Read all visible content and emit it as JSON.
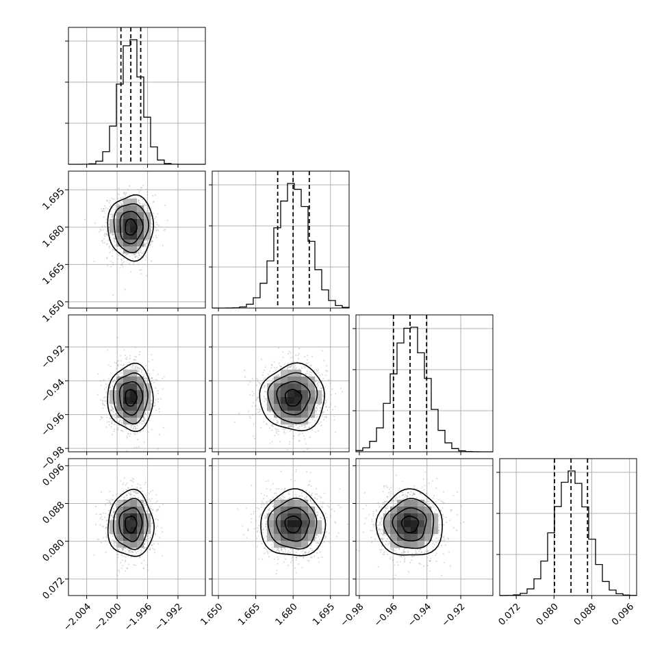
{
  "chart_data": {
    "type": "corner",
    "grid": true,
    "parameters": [
      {
        "range": [
          -2.0064,
          -1.9884
        ],
        "ticks": [
          -2.004,
          -2.0,
          -1.996,
          -1.992
        ],
        "tick_labels": [
          "−2.004",
          "−2.000",
          "−1.996",
          "−1.992"
        ],
        "mean": -1.9982,
        "sigma": 0.0015,
        "quantiles": [
          -1.9995,
          -1.9982,
          -1.9969
        ]
      },
      {
        "range": [
          1.6475,
          1.7025
        ],
        "ticks": [
          1.65,
          1.665,
          1.68,
          1.695
        ],
        "tick_labels": [
          "1.650",
          "1.665",
          "1.680",
          "1.695"
        ],
        "mean": 1.68,
        "sigma": 0.0065,
        "quantiles": [
          1.6738,
          1.68,
          1.6865
        ]
      },
      {
        "range": [
          -0.982,
          -0.901
        ],
        "ticks": [
          -0.98,
          -0.96,
          -0.94,
          -0.92
        ],
        "tick_labels": [
          "−0.98",
          "−0.96",
          "−0.94",
          "−0.92"
        ],
        "mean": -0.95,
        "sigma": 0.0098,
        "quantiles": [
          -0.9598,
          -0.95,
          -0.9402
        ]
      },
      {
        "range": [
          0.0685,
          0.0975
        ],
        "ticks": [
          0.072,
          0.08,
          0.088,
          0.096
        ],
        "tick_labels": [
          "0.072",
          "0.080",
          "0.088",
          "0.096"
        ],
        "mean": 0.0836,
        "sigma": 0.0035,
        "quantiles": [
          0.0801,
          0.0836,
          0.0871
        ]
      }
    ],
    "contour_levels_sigma": [
      0.5,
      1.0,
      1.5,
      2.0
    ],
    "histogram_bins": 20
  }
}
